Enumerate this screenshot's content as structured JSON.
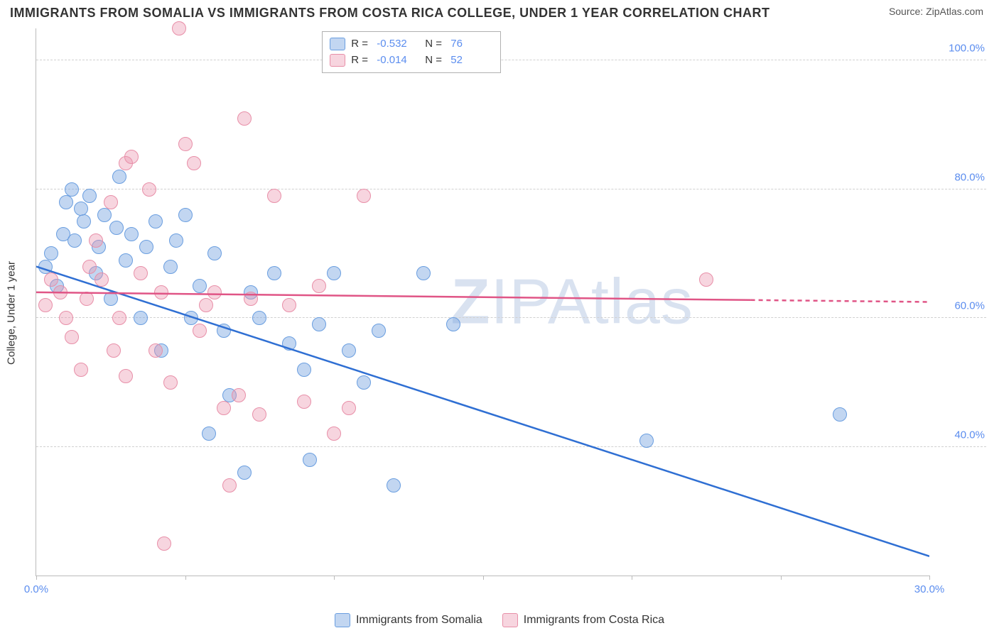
{
  "title": "IMMIGRANTS FROM SOMALIA VS IMMIGRANTS FROM COSTA RICA COLLEGE, UNDER 1 YEAR CORRELATION CHART",
  "source": "Source: ZipAtlas.com",
  "ylabel": "College, Under 1 year",
  "watermark": {
    "z": "Z",
    "rest": "IPAtlas"
  },
  "chart": {
    "type": "scatter",
    "xlim": [
      0,
      30
    ],
    "ylim": [
      20,
      105
    ],
    "yticks": [
      {
        "v": 40,
        "label": "40.0%"
      },
      {
        "v": 60,
        "label": "60.0%"
      },
      {
        "v": 80,
        "label": "80.0%"
      },
      {
        "v": 100,
        "label": "100.0%"
      }
    ],
    "xticks": [
      {
        "v": 0,
        "label": "0.0%"
      },
      {
        "v": 5,
        "label": ""
      },
      {
        "v": 10,
        "label": ""
      },
      {
        "v": 15,
        "label": ""
      },
      {
        "v": 20,
        "label": ""
      },
      {
        "v": 25,
        "label": ""
      },
      {
        "v": 30,
        "label": "30.0%"
      }
    ],
    "background_color": "#ffffff",
    "grid_color": "#d0d0d0",
    "axis_color": "#bbbbbb",
    "tick_label_color": "#5b8def",
    "dot_radius": 9,
    "series": [
      {
        "key": "somalia",
        "label": "Immigrants from Somalia",
        "fill": "rgba(120,165,225,0.45)",
        "stroke": "#6a9ee0",
        "trend_color": "#2f6fd3",
        "r": "-0.532",
        "n": "76",
        "trend": {
          "x0": 0,
          "y0": 68,
          "x1": 30,
          "y1": 23,
          "x_solid_end": 30
        },
        "points": [
          [
            0.3,
            68
          ],
          [
            0.5,
            70
          ],
          [
            0.7,
            65
          ],
          [
            0.9,
            73
          ],
          [
            1.0,
            78
          ],
          [
            1.2,
            80
          ],
          [
            1.3,
            72
          ],
          [
            1.5,
            77
          ],
          [
            1.6,
            75
          ],
          [
            1.8,
            79
          ],
          [
            2.0,
            67
          ],
          [
            2.1,
            71
          ],
          [
            2.3,
            76
          ],
          [
            2.5,
            63
          ],
          [
            2.7,
            74
          ],
          [
            2.8,
            82
          ],
          [
            3.0,
            69
          ],
          [
            3.2,
            73
          ],
          [
            3.5,
            60
          ],
          [
            3.7,
            71
          ],
          [
            4.0,
            75
          ],
          [
            4.2,
            55
          ],
          [
            4.5,
            68
          ],
          [
            4.7,
            72
          ],
          [
            5.0,
            76
          ],
          [
            5.2,
            60
          ],
          [
            5.5,
            65
          ],
          [
            5.8,
            42
          ],
          [
            6.0,
            70
          ],
          [
            6.3,
            58
          ],
          [
            6.5,
            48
          ],
          [
            7.0,
            36
          ],
          [
            7.2,
            64
          ],
          [
            7.5,
            60
          ],
          [
            8.0,
            67
          ],
          [
            8.5,
            56
          ],
          [
            9.0,
            52
          ],
          [
            9.2,
            38
          ],
          [
            9.5,
            59
          ],
          [
            10.0,
            67
          ],
          [
            10.5,
            55
          ],
          [
            11.0,
            50
          ],
          [
            11.5,
            58
          ],
          [
            12.0,
            34
          ],
          [
            13.0,
            67
          ],
          [
            14.0,
            59
          ],
          [
            20.5,
            41
          ],
          [
            27.0,
            45
          ]
        ]
      },
      {
        "key": "costarica",
        "label": "Immigrants from Costa Rica",
        "fill": "rgba(235,150,175,0.40)",
        "stroke": "#e88fa8",
        "trend_color": "#e05586",
        "r": "-0.014",
        "n": "52",
        "trend": {
          "x0": 0,
          "y0": 64,
          "x1": 30,
          "y1": 62.5,
          "x_solid_end": 24
        },
        "points": [
          [
            0.3,
            62
          ],
          [
            0.5,
            66
          ],
          [
            0.8,
            64
          ],
          [
            1.0,
            60
          ],
          [
            1.2,
            57
          ],
          [
            1.5,
            52
          ],
          [
            1.7,
            63
          ],
          [
            2.0,
            72
          ],
          [
            2.2,
            66
          ],
          [
            2.5,
            78
          ],
          [
            2.8,
            60
          ],
          [
            3.0,
            84
          ],
          [
            3.2,
            85
          ],
          [
            3.5,
            67
          ],
          [
            3.8,
            80
          ],
          [
            4.0,
            55
          ],
          [
            4.2,
            64
          ],
          [
            4.5,
            50
          ],
          [
            4.8,
            105
          ],
          [
            5.0,
            87
          ],
          [
            5.3,
            84
          ],
          [
            5.5,
            58
          ],
          [
            6.0,
            64
          ],
          [
            6.3,
            46
          ],
          [
            6.5,
            34
          ],
          [
            7.0,
            91
          ],
          [
            7.2,
            63
          ],
          [
            7.5,
            45
          ],
          [
            8.0,
            79
          ],
          [
            8.5,
            62
          ],
          [
            9.0,
            47
          ],
          [
            9.5,
            65
          ],
          [
            10.0,
            42
          ],
          [
            10.5,
            46
          ],
          [
            11.0,
            79
          ],
          [
            22.5,
            66
          ],
          [
            3.0,
            51
          ],
          [
            1.8,
            68
          ],
          [
            2.6,
            55
          ],
          [
            4.3,
            25
          ],
          [
            5.7,
            62
          ],
          [
            6.8,
            48
          ]
        ]
      }
    ]
  },
  "legend_top_labels": {
    "r": "R =",
    "n": "N ="
  }
}
